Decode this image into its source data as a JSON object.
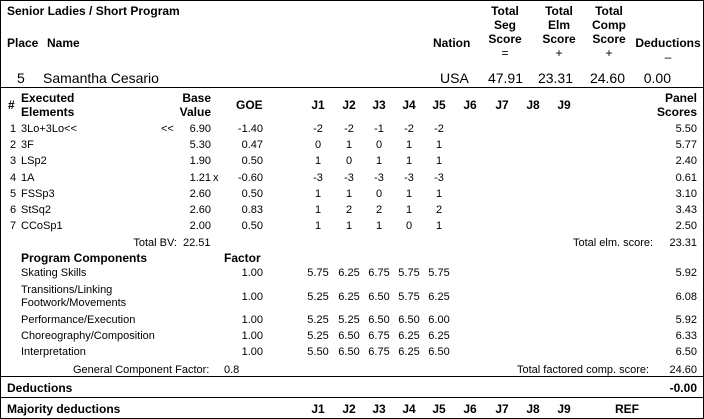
{
  "header": {
    "title": "Senior Ladies / Short Program",
    "place_label": "Place",
    "name_label": "Name",
    "nation_label": "Nation",
    "seg_label": [
      "Total",
      "Seg",
      "Score",
      "="
    ],
    "elm_label": [
      "Total",
      "Elm",
      "Score",
      "+"
    ],
    "comp_label": [
      "Total",
      "Comp",
      "Score",
      "+"
    ],
    "ded_label": [
      "Deductions",
      "–"
    ]
  },
  "skater": {
    "place": "5",
    "name": "Samantha Cesario",
    "nation": "USA",
    "total_seg": "47.91",
    "total_elm": "23.31",
    "total_comp": "24.60",
    "deductions": "0.00"
  },
  "elements_header": {
    "num": "#",
    "executed": [
      "Executed",
      "Elements"
    ],
    "base": [
      "Base",
      "Value"
    ],
    "goe": "GOE",
    "judges": [
      "J1",
      "J2",
      "J3",
      "J4",
      "J5",
      "J6",
      "J7",
      "J8",
      "J9"
    ],
    "panel": [
      "Panel",
      "Scores"
    ]
  },
  "elements": [
    {
      "num": "1",
      "name": "3Lo+3Lo<<",
      "info": "<<",
      "base": "6.90",
      "x": "",
      "goe": "-1.40",
      "j": [
        "-2",
        "-2",
        "-1",
        "-2",
        "-2"
      ],
      "score": "5.50"
    },
    {
      "num": "2",
      "name": "3F",
      "info": "",
      "base": "5.30",
      "x": "",
      "goe": "0.47",
      "j": [
        "0",
        "1",
        "0",
        "1",
        "1"
      ],
      "score": "5.77"
    },
    {
      "num": "3",
      "name": "LSp2",
      "info": "",
      "base": "1.90",
      "x": "",
      "goe": "0.50",
      "j": [
        "1",
        "0",
        "1",
        "1",
        "1"
      ],
      "score": "2.40"
    },
    {
      "num": "4",
      "name": "1A",
      "info": "",
      "base": "1.21",
      "x": "x",
      "goe": "-0.60",
      "j": [
        "-3",
        "-3",
        "-3",
        "-3",
        "-3"
      ],
      "score": "0.61"
    },
    {
      "num": "5",
      "name": "FSSp3",
      "info": "",
      "base": "2.60",
      "x": "",
      "goe": "0.50",
      "j": [
        "1",
        "1",
        "0",
        "1",
        "1"
      ],
      "score": "3.10"
    },
    {
      "num": "6",
      "name": "StSq2",
      "info": "",
      "base": "2.60",
      "x": "",
      "goe": "0.83",
      "j": [
        "1",
        "2",
        "2",
        "1",
        "2"
      ],
      "score": "3.43"
    },
    {
      "num": "7",
      "name": "CCoSp1",
      "info": "",
      "base": "2.00",
      "x": "",
      "goe": "0.50",
      "j": [
        "1",
        "1",
        "1",
        "0",
        "1"
      ],
      "score": "2.50"
    }
  ],
  "totals": {
    "bv_label": "Total BV:",
    "bv": "22.51",
    "elm_label": "Total elm. score:",
    "elm": "23.31"
  },
  "components_header": {
    "title": "Program Components",
    "factor": "Factor"
  },
  "components": [
    {
      "lines": [
        "Skating Skills"
      ],
      "factor": "1.00",
      "j": [
        "5.75",
        "6.25",
        "6.75",
        "5.75",
        "5.75"
      ],
      "score": "5.92"
    },
    {
      "lines": [
        "Transitions/Linking",
        "Footwork/Movements"
      ],
      "factor": "1.00",
      "j": [
        "5.25",
        "6.25",
        "6.50",
        "5.75",
        "6.25"
      ],
      "score": "6.08"
    },
    {
      "lines": [
        "Performance/Execution"
      ],
      "factor": "1.00",
      "j": [
        "5.25",
        "5.25",
        "6.50",
        "6.50",
        "6.00"
      ],
      "score": "5.92"
    },
    {
      "lines": [
        "Choreography/Composition"
      ],
      "factor": "1.00",
      "j": [
        "5.25",
        "6.50",
        "6.75",
        "6.25",
        "6.25"
      ],
      "score": "6.33"
    },
    {
      "lines": [
        "Interpretation"
      ],
      "factor": "1.00",
      "j": [
        "5.50",
        "6.50",
        "6.75",
        "6.25",
        "6.50"
      ],
      "score": "6.50"
    }
  ],
  "component_totals": {
    "gcf_label": "General Component Factor:",
    "gcf": "0.8",
    "tfc_label": "Total factored comp. score:",
    "tfc": "24.60"
  },
  "deductions": {
    "label": "Deductions",
    "value": "-0.00"
  },
  "majority": {
    "label": "Majority deductions",
    "judges": [
      "J1",
      "J2",
      "J3",
      "J4",
      "J5",
      "J6",
      "J7",
      "J8",
      "J9"
    ],
    "ref": "REF"
  }
}
